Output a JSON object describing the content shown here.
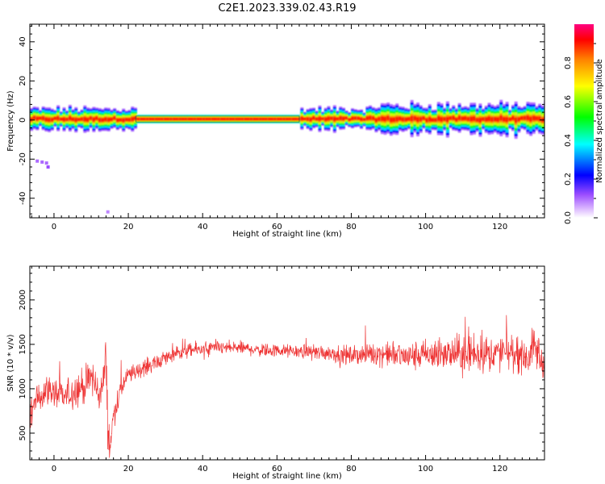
{
  "figure": {
    "title": "C2E1.2023.339.02.43.R19"
  },
  "chart_data": [
    {
      "type": "heatmap",
      "xlabel": "Height of straight line (km)",
      "ylabel": "Frequency (Hz)",
      "xlim": [
        -6.5,
        132
      ],
      "ylim": [
        -50,
        49
      ],
      "xticks": [
        0,
        20,
        40,
        60,
        80,
        100,
        120
      ],
      "yticks": [
        -40,
        -20,
        0,
        20,
        40
      ],
      "colorbar": {
        "label": "Normalized spectral amplitude",
        "range": [
          0,
          1
        ],
        "ticks": [
          "0.0",
          "0.2",
          "0.4",
          "0.6",
          "0.8"
        ],
        "colormap": [
          "#ffffff",
          "#c080ff",
          "#0000ff",
          "#00ffff",
          "#00ff00",
          "#ffff00",
          "#ff0000",
          "#ff0080"
        ]
      },
      "band": {
        "center_hz": 0.5,
        "pure_tone_km": [
          22,
          66
        ],
        "pure_tone_halfwidth_hz": 1.5
      },
      "sparse_points": [
        {
          "x": -4.5,
          "y": -21,
          "v": 0.1
        },
        {
          "x": -3.2,
          "y": -21.5,
          "v": 0.1
        },
        {
          "x": -2.0,
          "y": -22,
          "v": 0.1
        },
        {
          "x": -1.6,
          "y": -24,
          "v": 0.12
        },
        {
          "x": 14.5,
          "y": -47,
          "v": 0.08
        }
      ]
    },
    {
      "type": "line",
      "xlabel": "Height of straight line (km)",
      "ylabel": "SNR (10 * v/v)",
      "xlim": [
        -6.5,
        132
      ],
      "ylim": [
        200,
        2380
      ],
      "xticks": [
        0,
        20,
        40,
        60,
        80,
        100,
        120
      ],
      "yticks": [
        500,
        1000,
        1500,
        2000
      ],
      "color": "#ee3333",
      "series": [
        {
          "x": [
            -6.5,
            -5,
            -2,
            0,
            3,
            6,
            9,
            10,
            12,
            13,
            14,
            14.5,
            15,
            16,
            18,
            20,
            25,
            30,
            35,
            40,
            45,
            50,
            55,
            60,
            65,
            70,
            75,
            80,
            85,
            90,
            95,
            100,
            105,
            110,
            115,
            120,
            125,
            128,
            129.5,
            131,
            132
          ],
          "y": [
            700,
            850,
            1000,
            950,
            900,
            1000,
            1050,
            1150,
            950,
            1000,
            1350,
            600,
            300,
            700,
            1000,
            1150,
            1250,
            1350,
            1420,
            1450,
            1460,
            1460,
            1440,
            1430,
            1420,
            1420,
            1400,
            1370,
            1400,
            1390,
            1360,
            1380,
            1380,
            1400,
            1400,
            1400,
            1410,
            1350,
            1500,
            1300,
            1250
          ],
          "spread": [
            250,
            250,
            250,
            250,
            250,
            300,
            300,
            350,
            300,
            300,
            350,
            400,
            300,
            200,
            180,
            150,
            140,
            130,
            120,
            120,
            110,
            110,
            110,
            110,
            110,
            120,
            140,
            160,
            180,
            200,
            240,
            260,
            280,
            300,
            300,
            300,
            320,
            330,
            350,
            350,
            350
          ]
        }
      ]
    }
  ]
}
